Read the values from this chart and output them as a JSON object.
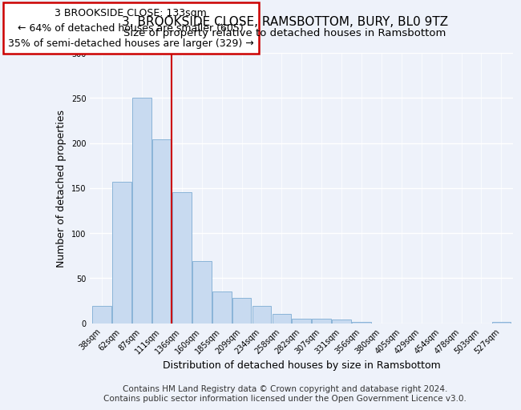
{
  "title": "3, BROOKSIDE CLOSE, RAMSBOTTOM, BURY, BL0 9TZ",
  "subtitle": "Size of property relative to detached houses in Ramsbottom",
  "xlabel": "Distribution of detached houses by size in Ramsbottom",
  "ylabel": "Number of detached properties",
  "bin_labels": [
    "38sqm",
    "62sqm",
    "87sqm",
    "111sqm",
    "136sqm",
    "160sqm",
    "185sqm",
    "209sqm",
    "234sqm",
    "258sqm",
    "282sqm",
    "307sqm",
    "331sqm",
    "356sqm",
    "380sqm",
    "405sqm",
    "429sqm",
    "454sqm",
    "478sqm",
    "503sqm",
    "527sqm"
  ],
  "bar_values": [
    19,
    157,
    250,
    204,
    145,
    69,
    35,
    28,
    19,
    10,
    5,
    5,
    4,
    1,
    0,
    0,
    0,
    0,
    0,
    0,
    1
  ],
  "bar_color": "#c8daf0",
  "bar_edge_color": "#8ab4d8",
  "marker_line_label": "3 BROOKSIDE CLOSE: 133sqm",
  "annotation_line1": "← 64% of detached houses are smaller (605)",
  "annotation_line2": "35% of semi-detached houses are larger (329) →",
  "annotation_box_color": "white",
  "annotation_box_edge_color": "#cc0000",
  "marker_line_color": "#cc0000",
  "ylim": [
    0,
    300
  ],
  "yticks": [
    0,
    50,
    100,
    150,
    200,
    250,
    300
  ],
  "footer_line1": "Contains HM Land Registry data © Crown copyright and database right 2024.",
  "footer_line2": "Contains public sector information licensed under the Open Government Licence v3.0.",
  "bg_color": "#eef2fa",
  "plot_bg_color": "#eef2fa",
  "title_fontsize": 11,
  "subtitle_fontsize": 9.5,
  "xlabel_fontsize": 9,
  "ylabel_fontsize": 9,
  "footer_fontsize": 7.5,
  "tick_fontsize": 7,
  "annotation_fontsize": 9
}
